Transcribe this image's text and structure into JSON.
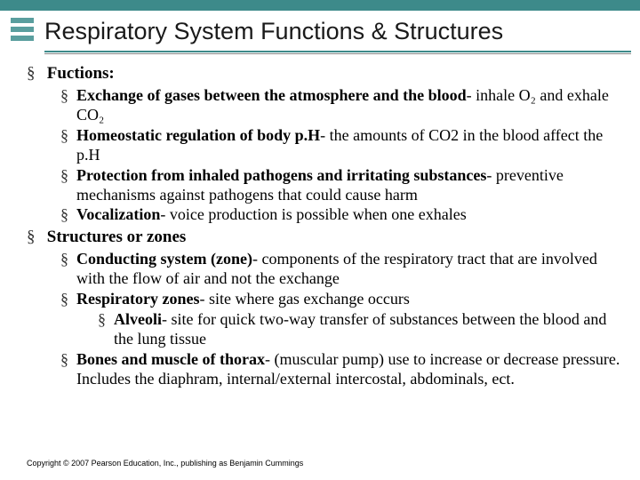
{
  "colors": {
    "header_bar": "#3d8a8a",
    "logo_bar": "#5a9e9e",
    "underline": "#3d8a8a",
    "background": "#ffffff",
    "text": "#000000"
  },
  "title": "Respiratory System Functions & Structures",
  "sections": [
    {
      "heading": "Fuctions:",
      "items": [
        {
          "bold": "Exchange of gases between the atmosphere and the blood",
          "rest": "- inhale O₂ and exhale CO₂"
        },
        {
          "bold": "Homeostatic regulation of body p.H",
          "rest": "- the amounts of CO2 in the blood affect the p.H"
        },
        {
          "bold": "Protection from inhaled pathogens and irritating substances",
          "rest": "- preventive mechanisms against pathogens that could cause harm"
        },
        {
          "bold": "Vocalization",
          "rest": "- voice production is possible when one exhales"
        }
      ]
    },
    {
      "heading": "Structures or zones",
      "items": [
        {
          "bold": "Conducting system (zone)",
          "rest": "- components of the respiratory tract that are involved with the flow of air and not the exchange"
        },
        {
          "bold": "Respiratory zones",
          "rest": "- site where gas exchange occurs",
          "sub": [
            {
              "bold": "Alveoli",
              "rest": "- site for quick two-way transfer of substances between the blood and the lung tissue"
            }
          ]
        },
        {
          "bold": "Bones and muscle of thorax",
          "rest": "- (muscular pump) use to increase or decrease pressure. Includes the diaphram, internal/external intercostal, abdominals, ect."
        }
      ]
    }
  ],
  "copyright": "Copyright © 2007 Pearson Education, Inc., publishing as Benjamin Cummings"
}
